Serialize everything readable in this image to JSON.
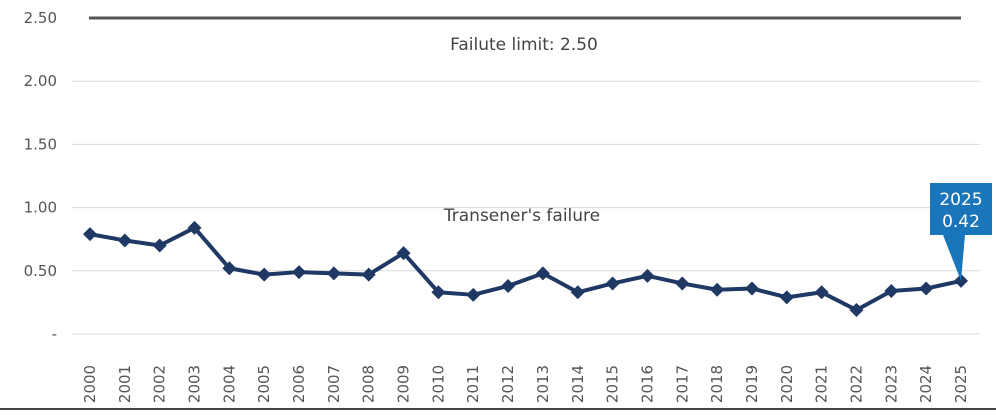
{
  "chart_data": {
    "type": "line",
    "categories": [
      "2000",
      "2001",
      "2002",
      "2003",
      "2004",
      "2005",
      "2006",
      "2007",
      "2008",
      "2009",
      "2010",
      "2011",
      "2012",
      "2013",
      "2014",
      "2015",
      "2016",
      "2017",
      "2018",
      "2019",
      "2020",
      "2021",
      "2022",
      "2023",
      "2024",
      "2025"
    ],
    "series": [
      {
        "values": [
          0.79,
          0.74,
          0.7,
          0.84,
          0.52,
          0.47,
          0.49,
          0.48,
          0.47,
          0.64,
          0.33,
          0.31,
          0.38,
          0.48,
          0.33,
          0.4,
          0.46,
          0.4,
          0.35,
          0.36,
          0.29,
          0.33,
          0.19,
          0.34,
          0.36,
          0.42
        ],
        "color": "#1f3864"
      }
    ],
    "y_ticks": [
      {
        "value": 0,
        "label": "-"
      },
      {
        "value": 0.5,
        "label": "0.50"
      },
      {
        "value": 1.0,
        "label": "1.00"
      },
      {
        "value": 1.5,
        "label": "1.50"
      },
      {
        "value": 2.0,
        "label": "2.00"
      },
      {
        "value": 2.5,
        "label": "2.50"
      }
    ],
    "ylim": [
      0,
      2.5
    ],
    "grid": true,
    "limit_line": {
      "value": 2.5,
      "label": "Failute limit: 2.50",
      "color": "#555555"
    },
    "series_annotation": "Transener's failure",
    "callout": {
      "year": "2025",
      "value": "0.42",
      "color": "#1b75bb"
    },
    "marker": "diamond"
  }
}
